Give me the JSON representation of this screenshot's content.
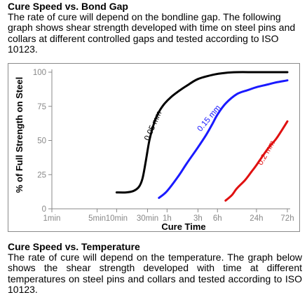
{
  "section1": {
    "title": "Cure Speed vs. Bond Gap",
    "body": "The rate of cure will depend on the bondline gap. The following graph shows shear strength developed with time on steel pins and collars at different controlled gaps and tested according to ISO 10123."
  },
  "section2": {
    "title": "Cure Speed vs. Temperature",
    "body": "The rate of cure will depend on the temperature. The graph below shows the shear strength developed with time at different temperatures on steel pins and collars and tested according to ISO 10123."
  },
  "chart_data": {
    "type": "line",
    "title": "",
    "xlabel": "Cure Time",
    "ylabel": "% of Full Strength on Steel",
    "x_scale": "log",
    "x_tick_labels": [
      "1min",
      "5min",
      "10min",
      "30min",
      "1h",
      "3h",
      "6h",
      "24h",
      "72h"
    ],
    "x_ticks_minutes": [
      1,
      5,
      10,
      30,
      60,
      180,
      360,
      1440,
      4320
    ],
    "y_ticks": [
      0,
      25,
      50,
      75,
      100
    ],
    "ylim": [
      0,
      100
    ],
    "grid": false,
    "colors": {
      "0.05 mm": "#000000",
      "0.15 mm": "#1a1aff",
      "0.2 mm": "#e01010",
      "axis": "#888888"
    },
    "series": [
      {
        "name": "0.05 mm",
        "x_minutes": [
          10,
          14,
          18,
          22,
          25,
          28,
          32,
          38,
          45,
          55,
          70,
          90,
          120,
          180,
          300,
          480,
          720,
          1440,
          4320
        ],
        "y": [
          12,
          12,
          13,
          16,
          22,
          34,
          50,
          63,
          71,
          77,
          82,
          86,
          90,
          95,
          98,
          99.5,
          100,
          100,
          100
        ]
      },
      {
        "name": "0.15 mm",
        "x_minutes": [
          45,
          60,
          90,
          120,
          180,
          240,
          300,
          360,
          480,
          720,
          1080,
          1440,
          2160,
          2880,
          4320
        ],
        "y": [
          8,
          13,
          24,
          33,
          45,
          54,
          62,
          69,
          77,
          84,
          87,
          89,
          91,
          92.5,
          94
        ]
      },
      {
        "name": "0.2 mm",
        "x_minutes": [
          480,
          600,
          720,
          960,
          1200,
          1440,
          2160,
          2880,
          3600,
          4320
        ],
        "y": [
          6,
          10,
          15,
          21,
          27,
          32,
          44,
          51,
          58,
          64
        ]
      }
    ]
  }
}
